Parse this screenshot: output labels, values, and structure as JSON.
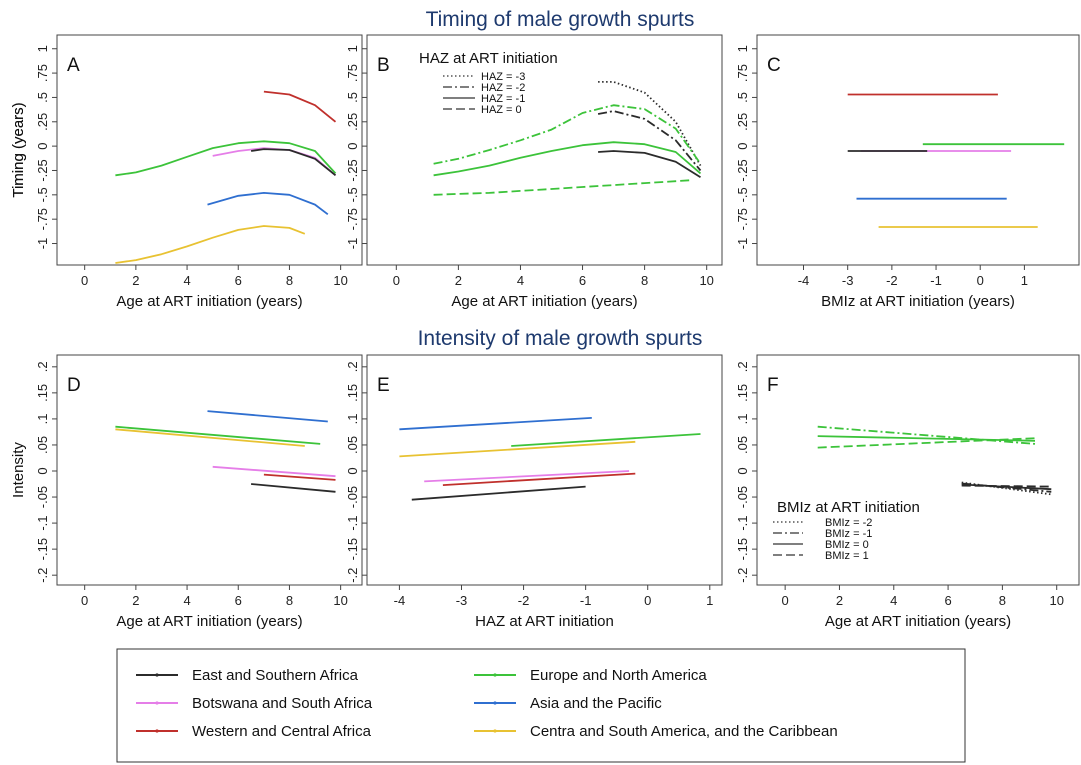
{
  "titles": {
    "timing": "Timing of male growth spurts",
    "intensity": "Intensity of male growth spurts"
  },
  "colors": {
    "East and Southern Africa": "#2b2b2b",
    "Botswana and South Africa": "#e57ee8",
    "Western and Central Africa": "#c0302c",
    "Europe and North America": "#3cc33a",
    "Asia and the Pacific": "#2f6fd0",
    "Centra and South America, and the Caribbean": "#e8c232"
  },
  "legend": {
    "items": [
      "East and Southern Africa",
      "Botswana and South Africa",
      "Western and Central Africa",
      "Europe and North America",
      "Asia and the Pacific",
      "Centra and South America, and the Caribbean"
    ]
  },
  "chart_data": [
    {
      "panel": "A",
      "type": "line",
      "xlabel": "Age at ART initiation (years)",
      "ylabel": "Timing (years)",
      "xlim": [
        -0.3,
        10.6
      ],
      "ylim": [
        -1.2,
        1.1
      ],
      "xticks": [
        0,
        2,
        4,
        6,
        8,
        10
      ],
      "yticks": [
        -1,
        -0.75,
        -0.5,
        -0.25,
        0,
        0.25,
        0.5,
        0.75,
        1
      ],
      "yticklabels": [
        "-1",
        "-.75",
        "-.5",
        "-.25",
        "0",
        ".25",
        ".5",
        ".75",
        "1"
      ],
      "series": [
        {
          "name": "Western and Central Africa",
          "style": "solid",
          "x": [
            7,
            8,
            9,
            9.8
          ],
          "y": [
            0.56,
            0.53,
            0.42,
            0.25
          ]
        },
        {
          "name": "Europe and North America",
          "style": "solid",
          "x": [
            1.2,
            2,
            3,
            4,
            5,
            6,
            7,
            8,
            9,
            9.8
          ],
          "y": [
            -0.3,
            -0.27,
            -0.2,
            -0.11,
            -0.02,
            0.03,
            0.05,
            0.03,
            -0.05,
            -0.28
          ]
        },
        {
          "name": "Botswana and South Africa",
          "style": "solid",
          "x": [
            5,
            6,
            7,
            8,
            9,
            9.8
          ],
          "y": [
            -0.1,
            -0.05,
            -0.02,
            -0.04,
            -0.12,
            -0.3
          ]
        },
        {
          "name": "East and Southern Africa",
          "style": "solid",
          "x": [
            6.5,
            7,
            8,
            9,
            9.8
          ],
          "y": [
            -0.05,
            -0.03,
            -0.04,
            -0.13,
            -0.3
          ]
        },
        {
          "name": "Asia and the Pacific",
          "style": "solid",
          "x": [
            4.8,
            6,
            7,
            8,
            9,
            9.5
          ],
          "y": [
            -0.6,
            -0.51,
            -0.48,
            -0.5,
            -0.6,
            -0.7
          ]
        },
        {
          "name": "Centra and South America, and the Caribbean",
          "style": "solid",
          "x": [
            1.2,
            2,
            3,
            4,
            5,
            6,
            7,
            8,
            8.6
          ],
          "y": [
            -1.2,
            -1.17,
            -1.11,
            -1.03,
            -0.94,
            -0.86,
            -0.82,
            -0.84,
            -0.9
          ]
        }
      ]
    },
    {
      "panel": "B",
      "type": "line",
      "xlabel": "Age at ART initiation (years)",
      "ylabel": "",
      "xlim": [
        -0.3,
        10.3
      ],
      "ylim": [
        -1.2,
        1.1
      ],
      "xticks": [
        0,
        2,
        4,
        6,
        8,
        10
      ],
      "yticks": [
        -1,
        -0.75,
        -0.5,
        -0.25,
        0,
        0.25,
        0.5,
        0.75,
        1
      ],
      "yticklabels": [
        "-1",
        "-.75",
        "-.5",
        "-.25",
        "0",
        ".25",
        ".5",
        ".75",
        "1"
      ],
      "legend_title": "HAZ at ART initiation",
      "legend_entries": [
        {
          "label": "HAZ = -3",
          "style": "dotted"
        },
        {
          "label": "HAZ = -2",
          "style": "dashdot"
        },
        {
          "label": "HAZ = -1",
          "style": "solid"
        },
        {
          "label": "HAZ = 0",
          "style": "dashed"
        }
      ],
      "series": [
        {
          "name": "East and Southern Africa",
          "style": "dotted",
          "x": [
            6.5,
            7,
            8,
            9,
            9.8
          ],
          "y": [
            0.66,
            0.66,
            0.55,
            0.25,
            -0.2
          ]
        },
        {
          "name": "Europe and North America",
          "style": "dashdot",
          "x": [
            1.2,
            2,
            3,
            4,
            5,
            6,
            7,
            8,
            9,
            9.8
          ],
          "y": [
            -0.18,
            -0.13,
            -0.04,
            0.06,
            0.17,
            0.34,
            0.42,
            0.38,
            0.18,
            -0.18
          ]
        },
        {
          "name": "East and Southern Africa",
          "style": "dashdot",
          "x": [
            6.5,
            7,
            8,
            9,
            9.8
          ],
          "y": [
            0.33,
            0.36,
            0.28,
            0.06,
            -0.25
          ]
        },
        {
          "name": "Europe and North America",
          "style": "solid",
          "x": [
            1.2,
            2,
            3,
            4,
            5,
            6,
            7,
            8,
            9,
            9.8
          ],
          "y": [
            -0.3,
            -0.26,
            -0.2,
            -0.12,
            -0.05,
            0.01,
            0.04,
            0.02,
            -0.06,
            -0.28
          ]
        },
        {
          "name": "East and Southern Africa",
          "style": "solid",
          "x": [
            6.5,
            7,
            8,
            9,
            9.8
          ],
          "y": [
            -0.06,
            -0.05,
            -0.07,
            -0.16,
            -0.32
          ]
        },
        {
          "name": "Europe and North America",
          "style": "dashed",
          "x": [
            1.2,
            2,
            3,
            4,
            5,
            6,
            7,
            8,
            9,
            9.5
          ],
          "y": [
            -0.5,
            -0.49,
            -0.48,
            -0.46,
            -0.44,
            -0.42,
            -0.4,
            -0.38,
            -0.36,
            -0.35
          ]
        }
      ]
    },
    {
      "panel": "C",
      "type": "line",
      "xlabel": "BMIz at ART initiation (years)",
      "ylabel": "Timing (years)",
      "xlim": [
        -4.6,
        2.1
      ],
      "ylim": [
        -1.2,
        1.1
      ],
      "xticks": [
        -4,
        -3,
        -2,
        -1,
        0,
        1
      ],
      "yticks": [
        -1,
        -0.75,
        -0.5,
        -0.25,
        0,
        0.25,
        0.5,
        0.75,
        1
      ],
      "yticklabels": [
        "-1",
        "-.75",
        "-.5",
        "-.25",
        "0",
        ".25",
        ".5",
        ".75",
        "1"
      ],
      "series": [
        {
          "name": "Western and Central Africa",
          "style": "solid",
          "x": [
            -3,
            0.4
          ],
          "y": [
            0.53,
            0.53
          ]
        },
        {
          "name": "Europe and North America",
          "style": "solid",
          "x": [
            -1.3,
            1.9
          ],
          "y": [
            0.02,
            0.02
          ]
        },
        {
          "name": "Botswana and South Africa",
          "style": "solid",
          "x": [
            -2.7,
            0.7
          ],
          "y": [
            -0.05,
            -0.05
          ]
        },
        {
          "name": "East and Southern Africa",
          "style": "solid",
          "x": [
            -3,
            -1.2
          ],
          "y": [
            -0.05,
            -0.05
          ]
        },
        {
          "name": "Asia and the Pacific",
          "style": "solid",
          "x": [
            -2.8,
            0.6
          ],
          "y": [
            -0.54,
            -0.54
          ]
        },
        {
          "name": "Centra and South America, and the Caribbean",
          "style": "solid",
          "x": [
            -2.3,
            1.3
          ],
          "y": [
            -0.83,
            -0.83
          ]
        }
      ]
    },
    {
      "panel": "D",
      "type": "line",
      "xlabel": "Age at ART initiation (years)",
      "ylabel": "Intensity",
      "xlim": [
        -0.3,
        10.6
      ],
      "ylim": [
        -0.215,
        0.215
      ],
      "xticks": [
        0,
        2,
        4,
        6,
        8,
        10
      ],
      "yticks": [
        -0.2,
        -0.15,
        -0.1,
        -0.05,
        0,
        0.05,
        0.1,
        0.15,
        0.2
      ],
      "yticklabels": [
        "-.2",
        "-.15",
        "-.1",
        "-.05",
        "0",
        ".05",
        ".1",
        ".15",
        ".2"
      ],
      "series": [
        {
          "name": "Asia and the Pacific",
          "style": "solid",
          "x": [
            4.8,
            9.5
          ],
          "y": [
            0.115,
            0.095
          ]
        },
        {
          "name": "Europe and North America",
          "style": "solid",
          "x": [
            1.2,
            9.2
          ],
          "y": [
            0.085,
            0.052
          ]
        },
        {
          "name": "Centra and South America, and the Caribbean",
          "style": "solid",
          "x": [
            1.2,
            8.6
          ],
          "y": [
            0.08,
            0.048
          ]
        },
        {
          "name": "Botswana and South Africa",
          "style": "solid",
          "x": [
            5,
            9.8
          ],
          "y": [
            0.008,
            -0.01
          ]
        },
        {
          "name": "Western and Central Africa",
          "style": "solid",
          "x": [
            7,
            9.8
          ],
          "y": [
            -0.007,
            -0.017
          ]
        },
        {
          "name": "East and Southern Africa",
          "style": "solid",
          "x": [
            6.5,
            9.8
          ],
          "y": [
            -0.025,
            -0.04
          ]
        }
      ]
    },
    {
      "panel": "E",
      "type": "line",
      "xlabel": "HAZ at ART initiation",
      "ylabel": "",
      "xlim": [
        -4.2,
        1.1
      ],
      "ylim": [
        -0.215,
        0.215
      ],
      "xticks": [
        -4,
        -3,
        -2,
        -1,
        0,
        1
      ],
      "yticks": [
        -0.2,
        -0.15,
        -0.1,
        -0.05,
        0,
        0.05,
        0.1,
        0.15,
        0.2
      ],
      "yticklabels": [
        "-.2",
        "-.15",
        "-.1",
        "-.05",
        "0",
        ".05",
        ".1",
        ".15",
        ".2"
      ],
      "series": [
        {
          "name": "Asia and the Pacific",
          "style": "solid",
          "x": [
            -4,
            -0.9
          ],
          "y": [
            0.08,
            0.102
          ]
        },
        {
          "name": "Europe and North America",
          "style": "solid",
          "x": [
            -2.2,
            0.85
          ],
          "y": [
            0.048,
            0.071
          ]
        },
        {
          "name": "Centra and South America, and the Caribbean",
          "style": "solid",
          "x": [
            -4,
            -0.2
          ],
          "y": [
            0.028,
            0.056
          ]
        },
        {
          "name": "Botswana and South Africa",
          "style": "solid",
          "x": [
            -3.6,
            -0.3
          ],
          "y": [
            -0.02,
            0.0
          ]
        },
        {
          "name": "Western and Central Africa",
          "style": "solid",
          "x": [
            -3.3,
            -0.2
          ],
          "y": [
            -0.027,
            -0.005
          ]
        },
        {
          "name": "East and Southern Africa",
          "style": "solid",
          "x": [
            -3.8,
            -1
          ],
          "y": [
            -0.055,
            -0.03
          ]
        }
      ]
    },
    {
      "panel": "F",
      "type": "line",
      "xlabel": "Age at ART initiation (years)",
      "ylabel": "",
      "xlim": [
        -0.3,
        10.6
      ],
      "ylim": [
        -0.215,
        0.215
      ],
      "xticks": [
        0,
        2,
        4,
        6,
        8,
        10
      ],
      "yticks": [
        -0.2,
        -0.15,
        -0.1,
        -0.05,
        0,
        0.05,
        0.1,
        0.15,
        0.2
      ],
      "yticklabels": [
        "-.2",
        "-.15",
        "-.1",
        "-.05",
        "0",
        ".05",
        ".1",
        ".15",
        ".2"
      ],
      "legend_title": "BMIz at ART initiation",
      "legend_entries": [
        {
          "label": "BMIz = -2",
          "style": "dotted"
        },
        {
          "label": "BMIz = -1",
          "style": "dashdot"
        },
        {
          "label": "BMIz = 0",
          "style": "solid"
        },
        {
          "label": "BMIz = 1",
          "style": "dashed"
        }
      ],
      "series": [
        {
          "name": "Europe and North America",
          "style": "dashdot",
          "x": [
            1.2,
            9.2
          ],
          "y": [
            0.085,
            0.052
          ]
        },
        {
          "name": "Europe and North America",
          "style": "solid",
          "x": [
            1.2,
            9.2
          ],
          "y": [
            0.067,
            0.058
          ]
        },
        {
          "name": "Europe and North America",
          "style": "dashed",
          "x": [
            1.2,
            9.2
          ],
          "y": [
            0.045,
            0.063
          ]
        },
        {
          "name": "East and Southern Africa",
          "style": "dotted",
          "x": [
            6.5,
            9.8
          ],
          "y": [
            -0.022,
            -0.045
          ]
        },
        {
          "name": "East and Southern Africa",
          "style": "dashdot",
          "x": [
            6.5,
            9.8
          ],
          "y": [
            -0.024,
            -0.04
          ]
        },
        {
          "name": "East and Southern Africa",
          "style": "solid",
          "x": [
            6.5,
            9.8
          ],
          "y": [
            -0.026,
            -0.035
          ]
        },
        {
          "name": "East and Southern Africa",
          "style": "dashed",
          "x": [
            6.5,
            9.8
          ],
          "y": [
            -0.028,
            -0.03
          ]
        }
      ]
    }
  ]
}
